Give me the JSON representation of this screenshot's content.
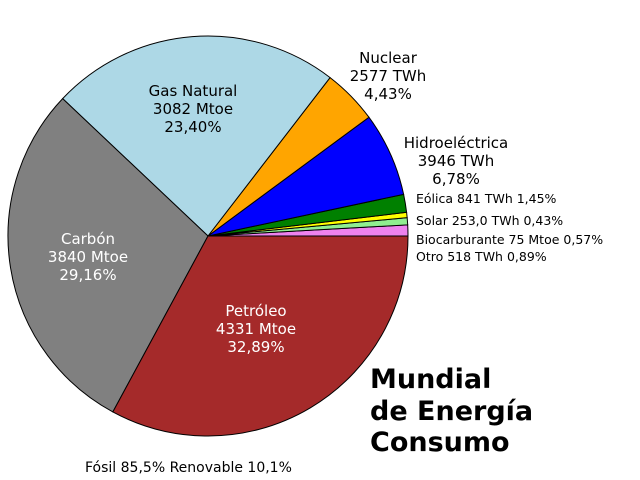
{
  "chart_data": {
    "type": "pie",
    "title_lines": [
      "Mundial",
      "de Energía",
      "Consumo"
    ],
    "footer": "Fósil 85,5% Renovable 10,1%",
    "slices": [
      {
        "name": "Otro",
        "amount": "518 TWh",
        "pct": 0.89,
        "pct_label": "0,89%",
        "color": "#ee82ee"
      },
      {
        "name": "Biocarburante",
        "amount": "75 Mtoe",
        "pct": 0.57,
        "pct_label": "0,57%",
        "color": "#90ee90"
      },
      {
        "name": "Solar",
        "amount": "253,0 TWh",
        "pct": 0.43,
        "pct_label": "0,43%",
        "color": "#ffff00"
      },
      {
        "name": "Eólica",
        "amount": "841 TWh",
        "pct": 1.45,
        "pct_label": "1,45%",
        "color": "#008000"
      },
      {
        "name": "Hidroeléctrica",
        "amount": "3946 TWh",
        "pct": 6.78,
        "pct_label": "6,78%",
        "color": "#0000ff"
      },
      {
        "name": "Nuclear",
        "amount": "2577 TWh",
        "pct": 4.43,
        "pct_label": "4,43%",
        "color": "#ffa500"
      },
      {
        "name": "Gas Natural",
        "amount": "3082 Mtoe",
        "pct": 23.4,
        "pct_label": "23,40%",
        "color": "#add8e6"
      },
      {
        "name": "Carbón",
        "amount": "3840 Mtoe",
        "pct": 29.16,
        "pct_label": "29,16%",
        "color": "#808080"
      },
      {
        "name": "Petróleo",
        "amount": "4331 Mtoe",
        "pct": 32.89,
        "pct_label": "32,89%",
        "color": "#a52a2a"
      }
    ]
  }
}
